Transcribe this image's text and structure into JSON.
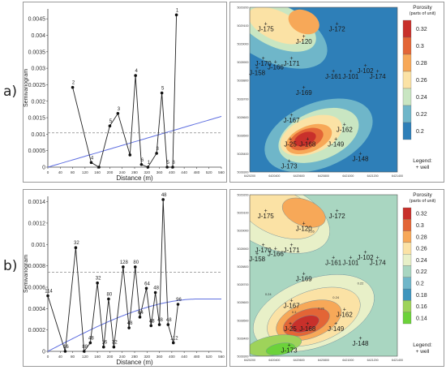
{
  "panels": [
    {
      "label": "a)"
    },
    {
      "label": "b)"
    }
  ],
  "chart_data": [
    {
      "type": "scatter",
      "subtype": "semivariogram",
      "xlabel": "Distance (m)",
      "ylabel": "Semivariogram",
      "xlim": [
        0,
        560
      ],
      "ylim": [
        0,
        0.0048
      ],
      "x_ticks": [
        "0",
        "40",
        "80",
        "120",
        "160",
        "200",
        "240",
        "280",
        "320",
        "360",
        "400",
        "440",
        "480",
        "520",
        "560"
      ],
      "y_ticks": [
        "0",
        "0.0005",
        "0.001",
        "0.0015",
        "0.002",
        "0.0025",
        "0.003",
        "0.0035",
        "0.004",
        "0.0045"
      ],
      "points": [
        {
          "x": 80,
          "y": 0.00242,
          "n": "2"
        },
        {
          "x": 140,
          "y": 0.00014,
          "n": "4"
        },
        {
          "x": 165,
          "y": 0.0,
          "n": ""
        },
        {
          "x": 200,
          "y": 0.00125,
          "n": "5"
        },
        {
          "x": 226,
          "y": 0.00163,
          "n": "3"
        },
        {
          "x": 265,
          "y": 0.00037,
          "n": ""
        },
        {
          "x": 283,
          "y": 0.00278,
          "n": "4"
        },
        {
          "x": 302,
          "y": 8e-05,
          "n": "6"
        },
        {
          "x": 323,
          "y": 0.0,
          "n": "1"
        },
        {
          "x": 351,
          "y": 0.00042,
          "n": "3"
        },
        {
          "x": 368,
          "y": 0.00225,
          "n": "5"
        },
        {
          "x": 385,
          "y": 0.0,
          "n": "5"
        },
        {
          "x": 403,
          "y": 0.0,
          "n": "8"
        },
        {
          "x": 415,
          "y": 0.00462,
          "n": "1"
        }
      ],
      "model": {
        "type": "linear",
        "y0": 0.0,
        "slope": 2.75e-06,
        "color": "#5f6fe0"
      },
      "sill": 0.00104
    },
    {
      "type": "scatter",
      "subtype": "semivariogram",
      "xlabel": "Distance (m)",
      "ylabel": "Semivariogram",
      "xlim": [
        0,
        560
      ],
      "ylim": [
        0,
        0.00145
      ],
      "x_ticks": [
        "0",
        "40",
        "80",
        "120",
        "160",
        "200",
        "240",
        "280",
        "320",
        "360",
        "400",
        "440",
        "480",
        "520",
        "560"
      ],
      "y_ticks": [
        "0",
        "0.0002",
        "0.0004",
        "0.0006",
        "0.0008",
        "0.001",
        "0.0012",
        "0.0014"
      ],
      "points": [
        {
          "x": 0,
          "y": 0.00052,
          "n": "114"
        },
        {
          "x": 56,
          "y": 0.0,
          "n": "16"
        },
        {
          "x": 90,
          "y": 0.00097,
          "n": "32"
        },
        {
          "x": 117,
          "y": 0.0,
          "n": "88"
        },
        {
          "x": 137,
          "y": 8e-05,
          "n": "48"
        },
        {
          "x": 160,
          "y": 0.00064,
          "n": "32"
        },
        {
          "x": 180,
          "y": 4e-05,
          "n": "16"
        },
        {
          "x": 196,
          "y": 0.00049,
          "n": "80"
        },
        {
          "x": 213,
          "y": 4e-05,
          "n": "32"
        },
        {
          "x": 243,
          "y": 0.00079,
          "n": "128"
        },
        {
          "x": 262,
          "y": 0.00022,
          "n": "48"
        },
        {
          "x": 282,
          "y": 0.00079,
          "n": "80"
        },
        {
          "x": 297,
          "y": 0.00032,
          "n": "64"
        },
        {
          "x": 318,
          "y": 0.00059,
          "n": "64"
        },
        {
          "x": 333,
          "y": 0.00024,
          "n": "48"
        },
        {
          "x": 347,
          "y": 0.00055,
          "n": "48"
        },
        {
          "x": 360,
          "y": 0.00025,
          "n": "48"
        },
        {
          "x": 372,
          "y": 0.00142,
          "n": "48"
        },
        {
          "x": 388,
          "y": 0.00025,
          "n": "48"
        },
        {
          "x": 405,
          "y": 8e-05,
          "n": "112"
        },
        {
          "x": 420,
          "y": 0.00044,
          "n": "96"
        }
      ],
      "model": {
        "type": "spherical",
        "nugget": 0.0,
        "sill": 0.00049,
        "range": 490,
        "color": "#5f6fe0"
      },
      "sill": 0.00074
    },
    {
      "type": "heatmap",
      "subtype": "porosity-map",
      "legend_title": "Porosity\n(parts of unit)",
      "colorbar_ticks": [
        "0.32",
        "0.3",
        "0.28",
        "0.26",
        "0.24",
        "0.22",
        "0.2"
      ],
      "colorbar_colors": [
        "#c8302b",
        "#e36536",
        "#f7a858",
        "#fbe2a5",
        "#c9e6c2",
        "#6fb6c9",
        "#2e7fb8"
      ],
      "legend_footer": [
        "Legend:",
        "+ well"
      ],
      "x_ticks": [
        "6420200",
        "6420400",
        "6420600",
        "6420800",
        "6421000",
        "6421200",
        "6421400"
      ],
      "y_ticks": [
        "5029200",
        "5029100",
        "5029000",
        "5028900",
        "5028800",
        "5028700",
        "5028600",
        "5028500",
        "5028400",
        "5028300"
      ],
      "xlim": [
        6420200,
        6421400
      ],
      "ylim": [
        5028300,
        5029200
      ],
      "wells": [
        {
          "name": "J-175",
          "x": 6420330,
          "y": 5029110
        },
        {
          "name": "J-120",
          "x": 6420640,
          "y": 5029040
        },
        {
          "name": "J-172",
          "x": 6420910,
          "y": 5029110
        },
        {
          "name": "J-170",
          "x": 6420310,
          "y": 5028920
        },
        {
          "name": "J-158",
          "x": 6420260,
          "y": 5028870
        },
        {
          "name": "J-166",
          "x": 6420410,
          "y": 5028900
        },
        {
          "name": "J-171",
          "x": 6420540,
          "y": 5028920
        },
        {
          "name": "J-102",
          "x": 6421140,
          "y": 5028880
        },
        {
          "name": "J-161",
          "x": 6420880,
          "y": 5028850
        },
        {
          "name": "J-101",
          "x": 6421020,
          "y": 5028850
        },
        {
          "name": "J-174",
          "x": 6421240,
          "y": 5028850
        },
        {
          "name": "J-169",
          "x": 6420640,
          "y": 5028760
        },
        {
          "name": "J-167",
          "x": 6420540,
          "y": 5028610
        },
        {
          "name": "J-162",
          "x": 6420970,
          "y": 5028560
        },
        {
          "name": "J-25",
          "x": 6420530,
          "y": 5028480
        },
        {
          "name": "J-168",
          "x": 6420670,
          "y": 5028480
        },
        {
          "name": "J-149",
          "x": 6420900,
          "y": 5028480
        },
        {
          "name": "J-148",
          "x": 6421100,
          "y": 5028400
        },
        {
          "name": "J-173",
          "x": 6420520,
          "y": 5028360
        }
      ]
    },
    {
      "type": "heatmap",
      "subtype": "porosity-map",
      "legend_title": "Porosity\n(parts of unit)",
      "colorbar_ticks": [
        "0.32",
        "0.3",
        "0.28",
        "0.26",
        "0.24",
        "0.22",
        "0.2",
        "0.18",
        "0.16",
        "0.14"
      ],
      "colorbar_colors": [
        "#c8302b",
        "#e36536",
        "#f7a858",
        "#fbe2a5",
        "#e8f0c8",
        "#a9d6c1",
        "#6fb6c9",
        "#3e95bd",
        "#9ed35a",
        "#6cd23a"
      ],
      "legend_footer": [
        "Legend:",
        "+ well"
      ],
      "contour_labels": [
        "0.26",
        "0.26",
        "0.24",
        "0.24",
        "0.3",
        "0.22"
      ],
      "x_ticks": [
        "6420200",
        "6420400",
        "6420600",
        "6420800",
        "6421000",
        "6421200",
        "6421400"
      ],
      "y_ticks": [
        "5029200",
        "5029100",
        "5029000",
        "5028900",
        "5028800",
        "5028700",
        "5028600",
        "5028500",
        "5028400",
        "5028300"
      ],
      "xlim": [
        6420200,
        6421400
      ],
      "ylim": [
        5028300,
        5029200
      ],
      "wells": [
        {
          "name": "J-175",
          "x": 6420330,
          "y": 5029110
        },
        {
          "name": "J-120",
          "x": 6420640,
          "y": 5029040
        },
        {
          "name": "J-172",
          "x": 6420910,
          "y": 5029110
        },
        {
          "name": "J-170",
          "x": 6420310,
          "y": 5028920
        },
        {
          "name": "J-158",
          "x": 6420260,
          "y": 5028870
        },
        {
          "name": "J-166",
          "x": 6420410,
          "y": 5028900
        },
        {
          "name": "J-171",
          "x": 6420540,
          "y": 5028920
        },
        {
          "name": "J-102",
          "x": 6421140,
          "y": 5028880
        },
        {
          "name": "J-161",
          "x": 6420880,
          "y": 5028850
        },
        {
          "name": "J-101",
          "x": 6421020,
          "y": 5028850
        },
        {
          "name": "J-174",
          "x": 6421240,
          "y": 5028850
        },
        {
          "name": "J-169",
          "x": 6420640,
          "y": 5028760
        },
        {
          "name": "J-167",
          "x": 6420540,
          "y": 5028610
        },
        {
          "name": "J-162",
          "x": 6420970,
          "y": 5028560
        },
        {
          "name": "J-25",
          "x": 6420530,
          "y": 5028480
        },
        {
          "name": "J-168",
          "x": 6420670,
          "y": 5028480
        },
        {
          "name": "J-149",
          "x": 6420900,
          "y": 5028480
        },
        {
          "name": "J-148",
          "x": 6421100,
          "y": 5028400
        },
        {
          "name": "J-173",
          "x": 6420520,
          "y": 5028360
        }
      ]
    }
  ]
}
